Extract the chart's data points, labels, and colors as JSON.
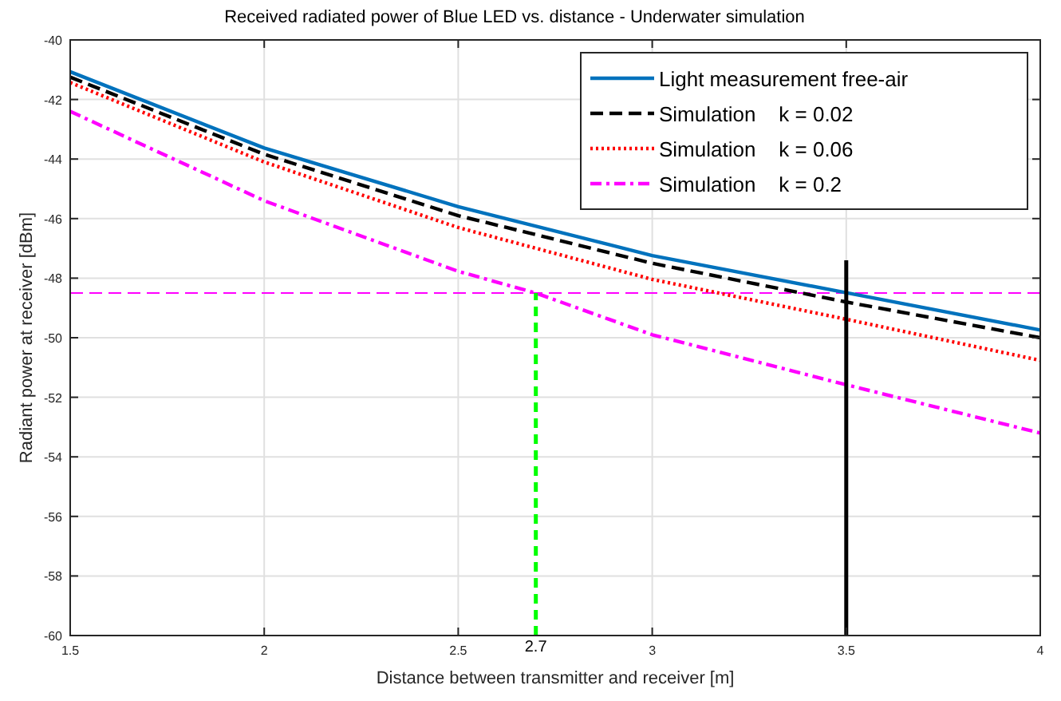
{
  "chart_data": {
    "type": "line",
    "title": "Received radiated power of Blue LED vs. distance - Underwater simulation",
    "xlabel": "Distance between transmitter and receiver [m]",
    "ylabel": "Radiant power at receiver [dBm]",
    "x": [
      1.5,
      2,
      2.5,
      3,
      3.5,
      4
    ],
    "series": [
      {
        "name": "Light measurement free-air",
        "color": "#0072bd",
        "line_style": "solid",
        "values": [
          -41.07,
          -43.63,
          -45.6,
          -47.24,
          -48.49,
          -49.74
        ]
      },
      {
        "name": "Simulation    k = 0.02",
        "color": "#000000",
        "line_style": "dashed",
        "values": [
          -41.25,
          -43.84,
          -45.9,
          -47.5,
          -48.8,
          -50.0
        ]
      },
      {
        "name": "Simulation    k = 0.06",
        "color": "#ff0000",
        "line_style": "dotted",
        "values": [
          -41.43,
          -44.1,
          -46.3,
          -48.04,
          -49.38,
          -50.76
        ]
      },
      {
        "name": "Simulation    k = 0.2",
        "color": "#ff00ff",
        "line_style": "dashdot",
        "x": [
          1.5,
          2,
          2.5,
          2.7,
          3,
          3.5,
          4
        ],
        "values": [
          -42.4,
          -45.4,
          -47.77,
          -48.5,
          -49.9,
          -51.58,
          -53.2
        ]
      },
      {
        "color": "#00ff00",
        "line_style": "dashed",
        "x": [
          2.7,
          2.7
        ],
        "values": [
          -60,
          -48.5
        ]
      },
      {
        "color": "#000000",
        "line_style": "solid",
        "x": [
          3.5,
          3.5
        ],
        "values": [
          -60,
          -47.4
        ]
      }
    ],
    "ref_lines": [
      {
        "axis": "y",
        "value": -48.5,
        "color": "#ff00ff",
        "line_style": "dashed"
      }
    ],
    "annotations": [
      {
        "text": "2.7",
        "x": 2.7,
        "y": -60
      }
    ],
    "xlim": [
      1.5,
      4
    ],
    "xticks": [
      1.5,
      2,
      2.5,
      3,
      3.5,
      4
    ],
    "ylim": [
      -60,
      -40
    ],
    "yticks": [
      -60,
      -58,
      -56,
      -54,
      -52,
      -50,
      -48,
      -46,
      -44,
      -42,
      -40
    ],
    "grid": true,
    "legend": "top right",
    "marker": "none"
  }
}
